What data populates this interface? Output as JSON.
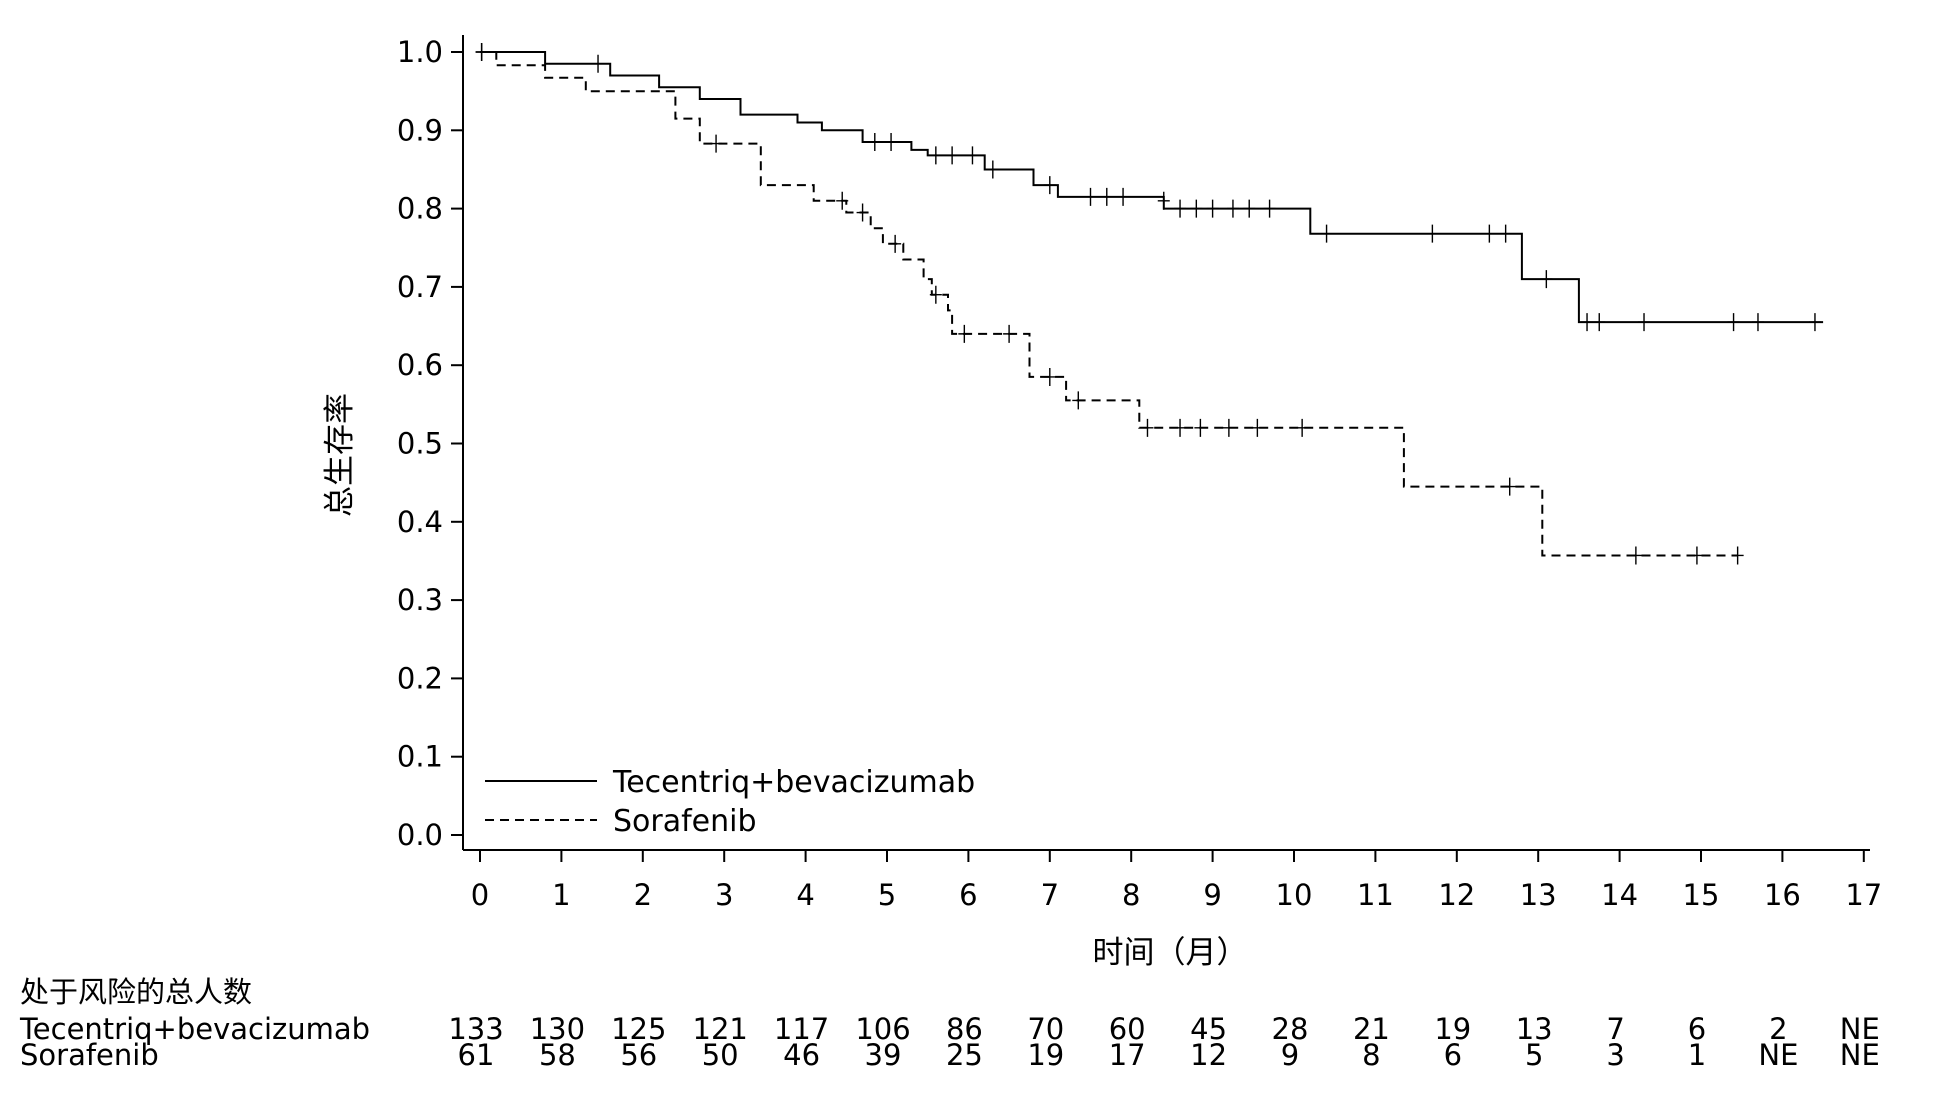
{
  "chart_data": {
    "type": "line",
    "subtype": "kaplan-meier",
    "title": "",
    "xlabel": "时间（月）",
    "ylabel": "总生存率",
    "xlim": [
      0,
      17
    ],
    "ylim": [
      0,
      1
    ],
    "xticks": [
      0,
      1,
      2,
      3,
      4,
      5,
      6,
      7,
      8,
      9,
      10,
      11,
      12,
      13,
      14,
      15,
      16,
      17
    ],
    "yticks": [
      "0.0",
      "0.1",
      "0.2",
      "0.3",
      "0.4",
      "0.5",
      "0.6",
      "0.7",
      "0.8",
      "0.9",
      "1.0"
    ],
    "grid": false,
    "legend_position": "bottom-left",
    "series": [
      {
        "name": "Tecentriq+bevacizumab",
        "line_style": "solid",
        "steps": [
          [
            0,
            1.0
          ],
          [
            0.8,
            0.985
          ],
          [
            1.6,
            0.97
          ],
          [
            2.2,
            0.955
          ],
          [
            2.7,
            0.94
          ],
          [
            3.2,
            0.92
          ],
          [
            3.9,
            0.91
          ],
          [
            4.2,
            0.9
          ],
          [
            4.7,
            0.885
          ],
          [
            5.3,
            0.875
          ],
          [
            5.5,
            0.868
          ],
          [
            6.2,
            0.85
          ],
          [
            6.8,
            0.83
          ],
          [
            7.1,
            0.815
          ],
          [
            8.4,
            0.8
          ],
          [
            10.2,
            0.768
          ],
          [
            12.8,
            0.71
          ],
          [
            13.5,
            0.655
          ],
          [
            16.5,
            0.655
          ]
        ],
        "censored": [
          [
            0.02,
            1.0
          ],
          [
            1.45,
            0.985
          ],
          [
            4.85,
            0.885
          ],
          [
            5.05,
            0.885
          ],
          [
            5.6,
            0.868
          ],
          [
            5.8,
            0.868
          ],
          [
            6.05,
            0.868
          ],
          [
            6.3,
            0.85
          ],
          [
            7.0,
            0.83
          ],
          [
            7.5,
            0.815
          ],
          [
            7.7,
            0.815
          ],
          [
            7.9,
            0.815
          ],
          [
            8.4,
            0.81
          ],
          [
            8.6,
            0.8
          ],
          [
            8.8,
            0.8
          ],
          [
            9.0,
            0.8
          ],
          [
            9.25,
            0.8
          ],
          [
            9.45,
            0.8
          ],
          [
            9.7,
            0.8
          ],
          [
            10.4,
            0.768
          ],
          [
            11.7,
            0.768
          ],
          [
            12.4,
            0.768
          ],
          [
            12.6,
            0.768
          ],
          [
            13.1,
            0.71
          ],
          [
            13.6,
            0.655
          ],
          [
            13.75,
            0.655
          ],
          [
            14.3,
            0.655
          ],
          [
            15.4,
            0.655
          ],
          [
            15.7,
            0.655
          ],
          [
            16.4,
            0.655
          ]
        ]
      },
      {
        "name": "Sorafenib",
        "line_style": "dashed",
        "steps": [
          [
            0,
            1.0
          ],
          [
            0.2,
            0.983
          ],
          [
            0.8,
            0.967
          ],
          [
            1.3,
            0.95
          ],
          [
            2.4,
            0.915
          ],
          [
            2.7,
            0.883
          ],
          [
            3.45,
            0.83
          ],
          [
            4.1,
            0.81
          ],
          [
            4.5,
            0.795
          ],
          [
            4.8,
            0.775
          ],
          [
            4.95,
            0.755
          ],
          [
            5.2,
            0.735
          ],
          [
            5.45,
            0.71
          ],
          [
            5.55,
            0.69
          ],
          [
            5.75,
            0.67
          ],
          [
            5.8,
            0.64
          ],
          [
            6.75,
            0.585
          ],
          [
            7.2,
            0.555
          ],
          [
            8.1,
            0.52
          ],
          [
            11.35,
            0.445
          ],
          [
            13.05,
            0.357
          ],
          [
            15.45,
            0.357
          ]
        ],
        "censored": [
          [
            0.02,
            1.0
          ],
          [
            2.9,
            0.883
          ],
          [
            4.45,
            0.81
          ],
          [
            4.7,
            0.795
          ],
          [
            5.1,
            0.755
          ],
          [
            5.6,
            0.69
          ],
          [
            5.95,
            0.64
          ],
          [
            6.5,
            0.64
          ],
          [
            7.0,
            0.585
          ],
          [
            7.35,
            0.555
          ],
          [
            8.2,
            0.52
          ],
          [
            8.6,
            0.52
          ],
          [
            8.85,
            0.52
          ],
          [
            9.2,
            0.52
          ],
          [
            9.55,
            0.52
          ],
          [
            10.1,
            0.52
          ],
          [
            12.65,
            0.445
          ],
          [
            14.2,
            0.357
          ],
          [
            14.95,
            0.357
          ],
          [
            15.45,
            0.357
          ]
        ]
      }
    ],
    "risk_table": {
      "title": "处于风险的总人数",
      "rows": [
        {
          "name": "Tecentriq+bevacizumab",
          "values": [
            "133",
            "130",
            "125",
            "121",
            "117",
            "106",
            "86",
            "70",
            "60",
            "45",
            "28",
            "21",
            "19",
            "13",
            "7",
            "6",
            "2",
            "NE"
          ]
        },
        {
          "name": "Sorafenib",
          "values": [
            "61",
            "58",
            "56",
            "50",
            "46",
            "39",
            "25",
            "19",
            "17",
            "12",
            "9",
            "8",
            "6",
            "5",
            "3",
            "1",
            "NE",
            "NE"
          ]
        }
      ]
    }
  }
}
